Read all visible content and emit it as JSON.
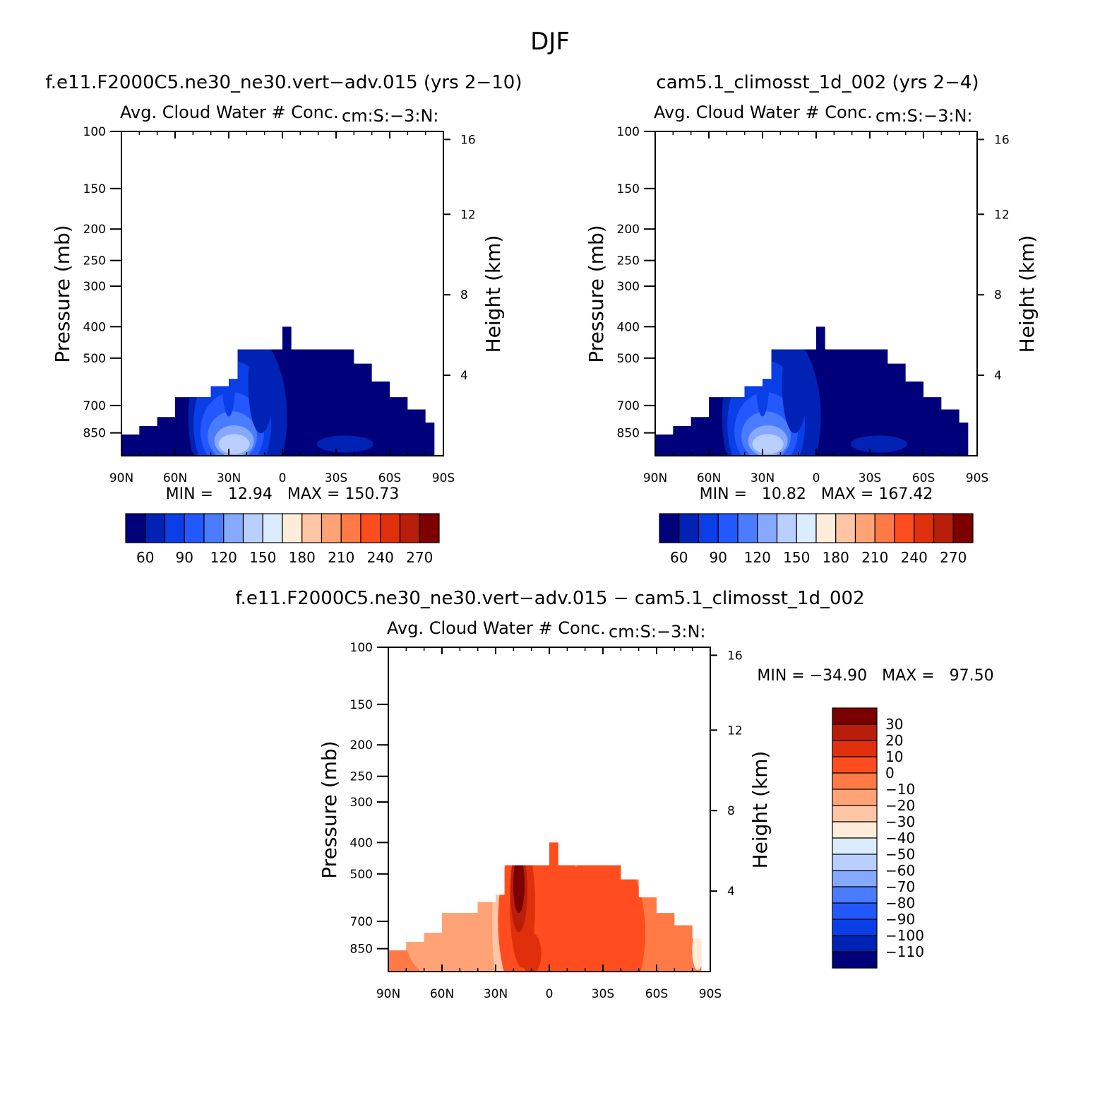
{
  "figure_title": "DJF",
  "panels": [
    {
      "case_title": "f.e11.F2000C5.ne30_ne30.vert−adv.015 (yrs 2−10)",
      "variable": "Avg. Cloud Water # Conc.",
      "units": "cm:S:−3:N:",
      "ylabel": "Pressure (mb)",
      "y2label": "Height (km)",
      "stats": "MIN =   12.94   MAX = 150.73"
    },
    {
      "case_title": "cam5.1_climosst_1d_002 (yrs 2−4)",
      "variable": "Avg. Cloud Water # Conc.",
      "units": "cm:S:−3:N:",
      "ylabel": "Pressure (mb)",
      "y2label": "Height (km)",
      "stats": "MIN =   10.82   MAX = 167.42"
    },
    {
      "case_title": "f.e11.F2000C5.ne30_ne30.vert−adv.015 − cam5.1_climosst_1d_002",
      "variable": "Avg. Cloud Water # Conc.",
      "units": "cm:S:−3:N:",
      "ylabel": "Pressure (mb)",
      "y2label": "Height (km)",
      "stats": "MIN = −34.90   MAX =   97.50"
    }
  ],
  "chart_data": [
    {
      "type": "heatmap",
      "title": "f.e11.F2000C5.ne30_ne30.vert−adv.015 (yrs 2−10)",
      "subtitle": "Avg. Cloud Water # Conc.",
      "xlabel": "",
      "ylabel": "Pressure (mb)",
      "y2label": "Height (km)",
      "x_ticks": [
        "90N",
        "60N",
        "30N",
        "0",
        "30S",
        "60S",
        "90S"
      ],
      "x_range": [
        90,
        -90
      ],
      "y_ticks": [
        100,
        150,
        200,
        250,
        300,
        400,
        500,
        700,
        850
      ],
      "y_range": [
        100,
        1000
      ],
      "y_scale": "log",
      "y2_ticks": [
        4,
        8,
        12,
        16
      ],
      "min": 12.94,
      "max": 150.73,
      "colorbar_ticks": [
        "60",
        "90",
        "120",
        "150",
        "180",
        "210",
        "240",
        "270"
      ],
      "colorbar_colors": [
        "#00007a",
        "#0022b5",
        "#0a3ee6",
        "#2458ff",
        "#4a7cff",
        "#86a9ff",
        "#b9cfff",
        "#dbecff",
        "#ffecd9",
        "#ffc6a6",
        "#ffa276",
        "#ff7a45",
        "#ff4d1f",
        "#e0300b",
        "#b81e0a",
        "#7d0000"
      ],
      "top_pressure": [
        470,
        470,
        470,
        400,
        470,
        470,
        470,
        470,
        470,
        520,
        520,
        560,
        590,
        660,
        660,
        720,
        770,
        780,
        810,
        850
      ],
      "top_lat": [
        90,
        80,
        70,
        60,
        50,
        40,
        30,
        25,
        20,
        15,
        10,
        5,
        0,
        -5,
        -10,
        -15,
        -20,
        -30,
        -40,
        -50,
        -60,
        -70,
        -80,
        -85
      ],
      "top_p": [
        860,
        810,
        760,
        660,
        660,
        610,
        580,
        470,
        470,
        470,
        470,
        470,
        400,
        470,
        470,
        470,
        470,
        470,
        520,
        590,
        660,
        720,
        790,
        860
      ]
    },
    {
      "type": "heatmap",
      "title": "cam5.1_climosst_1d_002 (yrs 2−4)",
      "subtitle": "Avg. Cloud Water # Conc.",
      "xlabel": "",
      "ylabel": "Pressure (mb)",
      "y2label": "Height (km)",
      "x_ticks": [
        "90N",
        "60N",
        "30N",
        "0",
        "30S",
        "60S",
        "90S"
      ],
      "x_range": [
        90,
        -90
      ],
      "y_ticks": [
        100,
        150,
        200,
        250,
        300,
        400,
        500,
        700,
        850
      ],
      "y_range": [
        100,
        1000
      ],
      "y_scale": "log",
      "y2_ticks": [
        4,
        8,
        12,
        16
      ],
      "min": 10.82,
      "max": 167.42,
      "colorbar_ticks": [
        "60",
        "90",
        "120",
        "150",
        "180",
        "210",
        "240",
        "270"
      ],
      "colorbar_colors": [
        "#00007a",
        "#0022b5",
        "#0a3ee6",
        "#2458ff",
        "#4a7cff",
        "#86a9ff",
        "#b9cfff",
        "#dbecff",
        "#ffecd9",
        "#ffc6a6",
        "#ffa276",
        "#ff7a45",
        "#ff4d1f",
        "#e0300b",
        "#b81e0a",
        "#7d0000"
      ],
      "top_lat": [
        90,
        80,
        70,
        60,
        50,
        40,
        30,
        25,
        20,
        15,
        10,
        5,
        0,
        -5,
        -10,
        -15,
        -20,
        -30,
        -40,
        -50,
        -60,
        -70,
        -80,
        -85
      ],
      "top_p": [
        860,
        810,
        760,
        660,
        660,
        610,
        580,
        470,
        470,
        470,
        470,
        470,
        400,
        470,
        470,
        470,
        470,
        470,
        520,
        590,
        660,
        720,
        790,
        860
      ]
    },
    {
      "type": "heatmap",
      "title": "f.e11.F2000C5.ne30_ne30.vert−adv.015 − cam5.1_climosst_1d_002",
      "subtitle": "Avg. Cloud Water # Conc.",
      "xlabel": "",
      "ylabel": "Pressure (mb)",
      "y2label": "Height (km)",
      "x_ticks": [
        "90N",
        "60N",
        "30N",
        "0",
        "30S",
        "60S",
        "90S"
      ],
      "x_range": [
        90,
        -90
      ],
      "y_ticks": [
        100,
        150,
        200,
        250,
        300,
        400,
        500,
        700,
        850
      ],
      "y_range": [
        100,
        1000
      ],
      "y_scale": "log",
      "y2_ticks": [
        4,
        8,
        12,
        16
      ],
      "min": -34.9,
      "max": 97.5,
      "colorbar_ticks": [
        "30",
        "20",
        "10",
        "0",
        "−10",
        "−20",
        "−30",
        "−40",
        "−50",
        "−60",
        "−70",
        "−80",
        "−90",
        "−100",
        "−110"
      ],
      "colorbar_colors": [
        "#7d0000",
        "#b81e0a",
        "#e0300b",
        "#ff4d1f",
        "#ff7a45",
        "#ffa276",
        "#ffc6a6",
        "#ffecd9",
        "#dbecff",
        "#b9cfff",
        "#86a9ff",
        "#4a7cff",
        "#2458ff",
        "#0a3ee6",
        "#0022b5",
        "#00007a"
      ],
      "top_lat": [
        90,
        80,
        70,
        60,
        50,
        40,
        30,
        25,
        20,
        15,
        10,
        5,
        0,
        -5,
        -10,
        -15,
        -20,
        -30,
        -40,
        -50,
        -60,
        -70,
        -80,
        -85
      ],
      "top_p": [
        860,
        810,
        760,
        660,
        660,
        610,
        580,
        470,
        470,
        470,
        470,
        470,
        400,
        470,
        470,
        470,
        470,
        470,
        520,
        590,
        660,
        720,
        790,
        860
      ]
    }
  ]
}
